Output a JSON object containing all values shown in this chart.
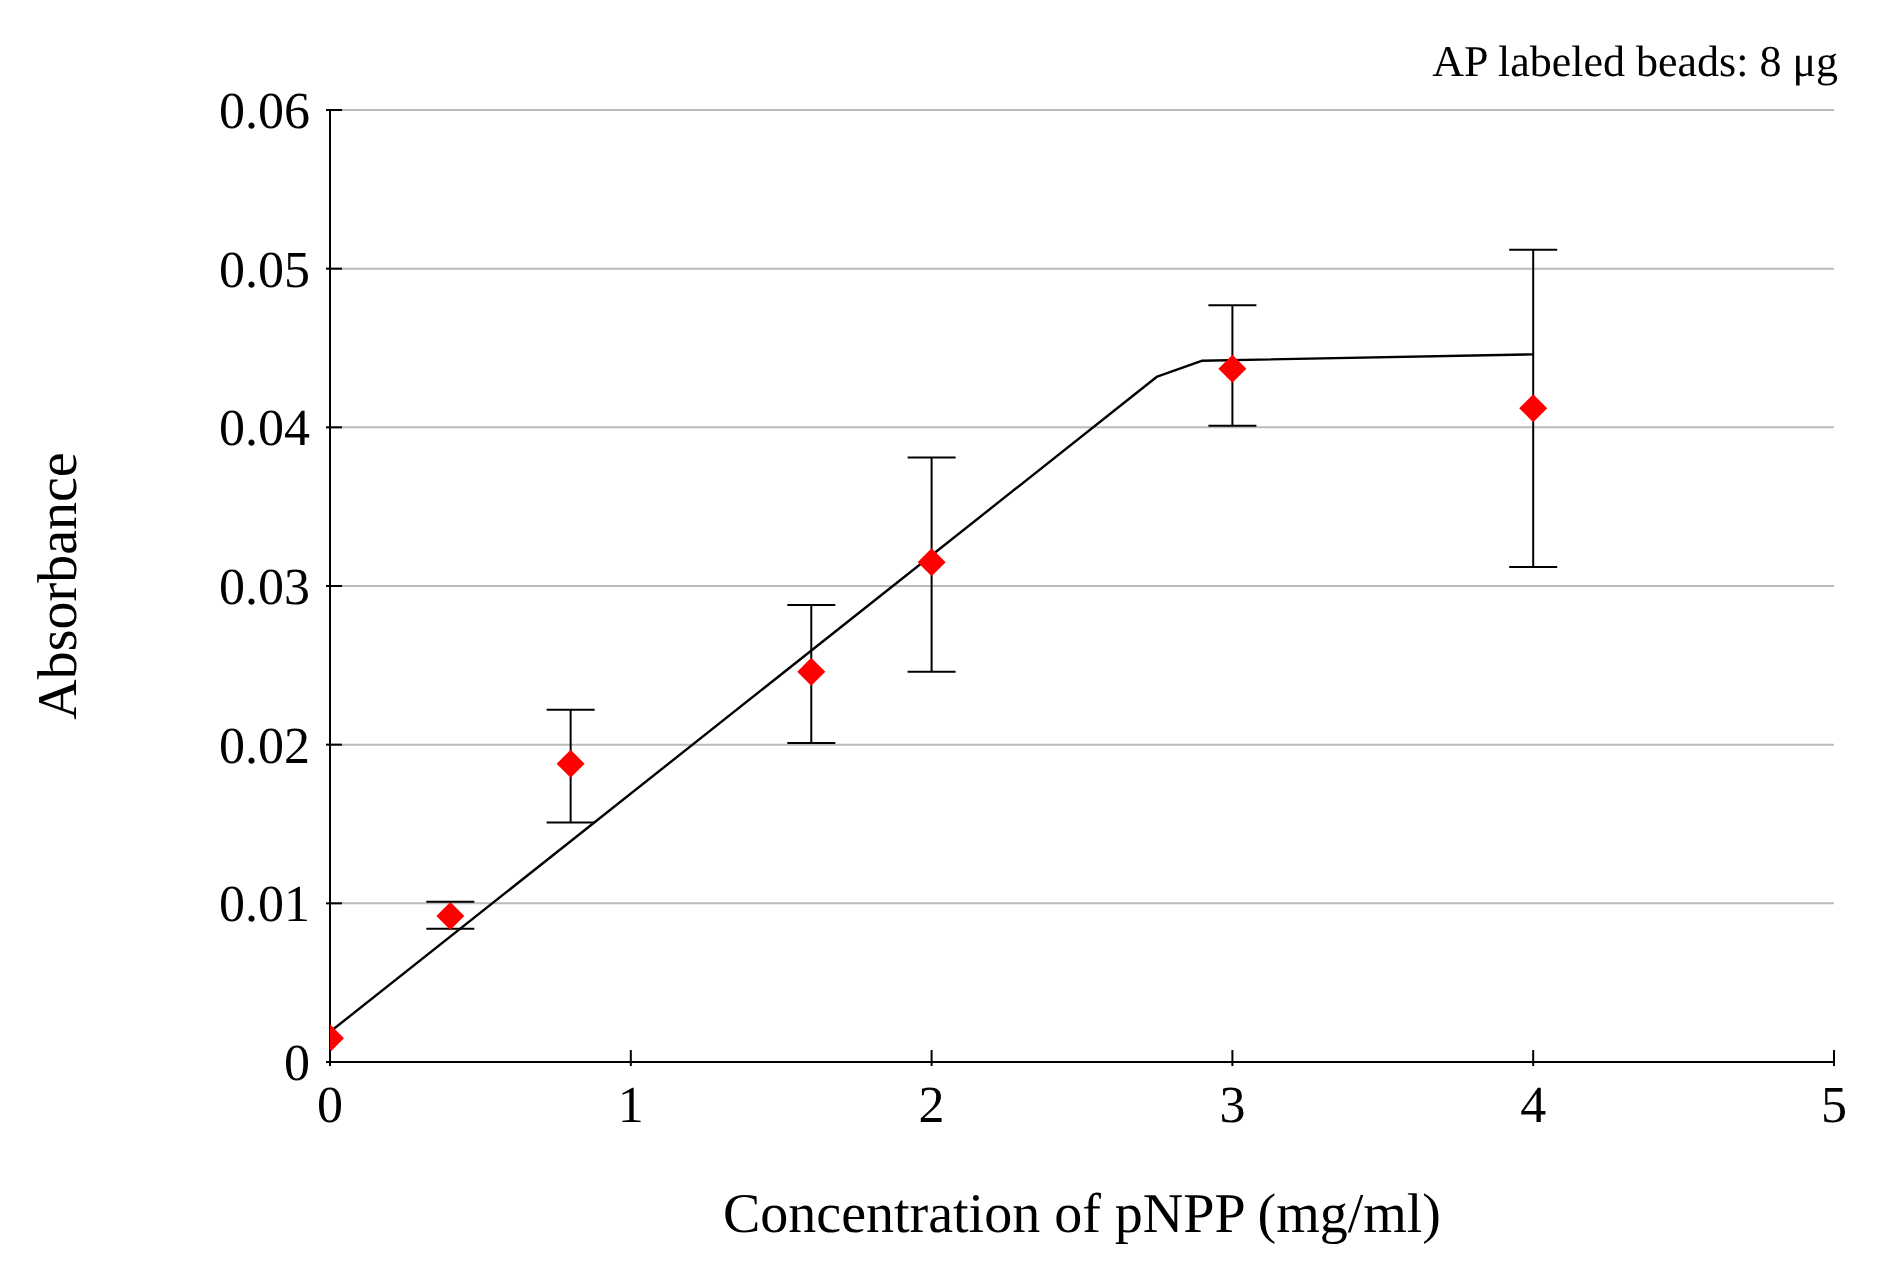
{
  "chart_data": {
    "type": "scatter",
    "xlabel": "Concentration of pNPP (mg/ml)",
    "ylabel": "Absorbance",
    "annotations": [
      "AP labeled beads: 8 μg"
    ],
    "xlim": [
      0,
      5
    ],
    "xticks": [
      0,
      1,
      2,
      3,
      4,
      5
    ],
    "ylim": [
      0,
      0.06
    ],
    "yticks": [
      0,
      0.01,
      0.02,
      0.03,
      0.04,
      0.05,
      0.06
    ],
    "grid": "y",
    "legend": false,
    "series": [
      {
        "color": "#ff0000",
        "marker": "diamond",
        "x": [
          0,
          0.4,
          0.8,
          1.6,
          2,
          3,
          4
        ],
        "values": [
          0.0015,
          0.0092,
          0.0188,
          0.0246,
          0.0315,
          0.0437,
          0.0412
        ],
        "errors": [
          null,
          [
            0.0084,
            0.0101
          ],
          [
            0.0151,
            0.0222
          ],
          [
            0.0201,
            0.0288
          ],
          [
            0.0246,
            0.0381
          ],
          [
            0.0401,
            0.0477
          ],
          [
            0.0312,
            0.0512
          ]
        ]
      },
      {
        "type": "line",
        "color": "#000000",
        "marker": "none",
        "x": [
          0,
          2.75,
          2.9,
          4
        ],
        "values": [
          0.0019,
          0.0432,
          0.0442,
          0.0446
        ]
      }
    ]
  }
}
